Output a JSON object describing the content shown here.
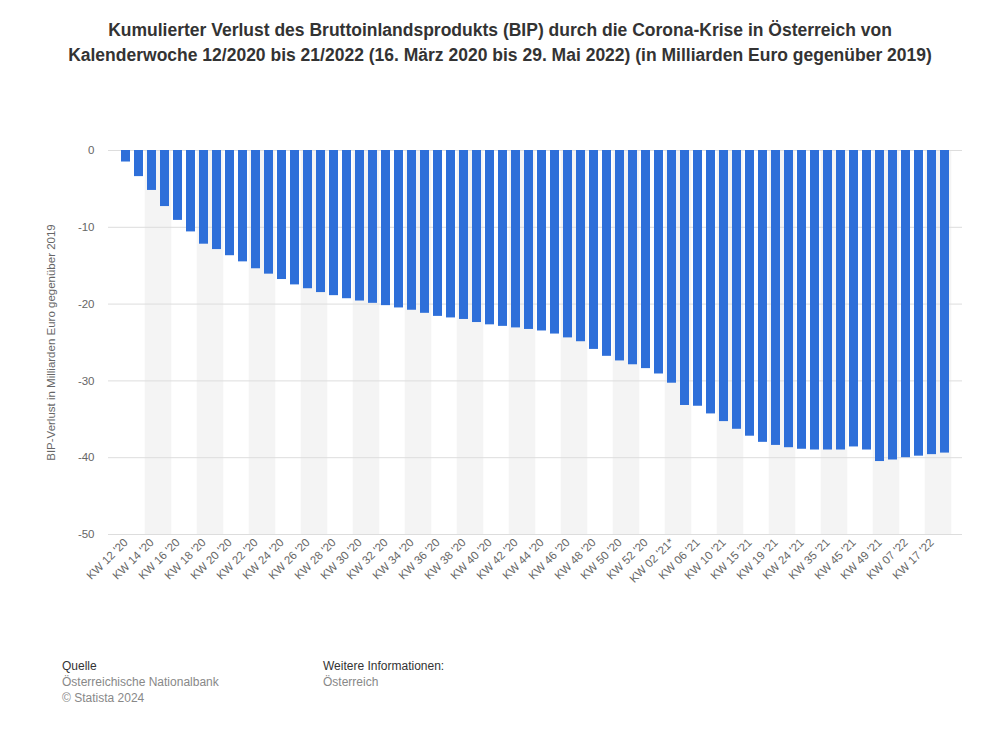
{
  "chart_data": {
    "type": "bar",
    "title": "Kumulierter Verlust des Bruttoinlandsprodukts (BIP) durch die Corona-Krise in Österreich von Kalenderwoche 12/2020 bis 21/2022 (16. März 2020 bis 29. Mai 2022) (in Milliarden Euro gegenüber 2019)",
    "y_label": "BIP-Verlust in Milliarden Euro gegenüber 2019",
    "categories": [
      "KW 12 '20",
      null,
      "KW 14 '20",
      null,
      "KW 16 '20",
      null,
      "KW 18 '20",
      null,
      "KW 20 '20",
      null,
      "KW 22 '20",
      null,
      "KW 24 '20",
      null,
      "KW 26 '20",
      null,
      "KW 28 '20",
      null,
      "KW 30 '20",
      null,
      "KW 32 '20",
      null,
      "KW 34 '20",
      null,
      "KW 36 '20",
      null,
      "KW 38 '20",
      null,
      "KW 40 '20",
      null,
      "KW 42 '20",
      null,
      "KW 44 '20",
      null,
      "KW 46 '20",
      null,
      "KW 48 '20",
      null,
      "KW 50 '20",
      null,
      "KW 52 '20",
      null,
      "KW 02 '21*",
      null,
      "KW 06 '21",
      null,
      "KW 10 '21",
      null,
      "KW 15 '21",
      null,
      "KW 19 '21",
      null,
      "KW 24 '21",
      null,
      "KW 35 '21",
      null,
      "KW 45 '21",
      null,
      "KW 49 '21",
      null,
      "KW 07 '22",
      null,
      "KW 17 '22",
      null
    ],
    "values": [
      -1.5,
      -3.4,
      -5.2,
      -7.3,
      -9.1,
      -10.6,
      -12.2,
      -12.9,
      -13.7,
      -14.5,
      -15.4,
      -16.1,
      -16.8,
      -17.5,
      -18.0,
      -18.5,
      -18.9,
      -19.3,
      -19.6,
      -19.9,
      -20.2,
      -20.5,
      -20.8,
      -21.2,
      -21.6,
      -21.8,
      -22.0,
      -22.4,
      -22.7,
      -22.9,
      -23.1,
      -23.3,
      -23.5,
      -23.9,
      -24.4,
      -24.9,
      -25.9,
      -26.8,
      -27.4,
      -27.9,
      -28.4,
      -29.1,
      -30.3,
      -33.2,
      -33.3,
      -34.3,
      -35.3,
      -36.3,
      -37.2,
      -38.0,
      -38.4,
      -38.7,
      -38.9,
      -39.0,
      -39.0,
      -39.0,
      -38.6,
      -39.0,
      -40.5,
      -40.3,
      -40.0,
      -39.8,
      -39.6,
      -39.4
    ],
    "color": "#2e6fd9",
    "ylim": [
      -50,
      0
    ],
    "yticks": [
      -50,
      -40,
      -30,
      -20,
      -10,
      0
    ],
    "grid": true,
    "source_label": "Quelle",
    "source": "Österreichische Nationalbank",
    "copyright": "© Statista 2024",
    "info_label": "Weitere Informationen:",
    "info": "Österreich"
  }
}
